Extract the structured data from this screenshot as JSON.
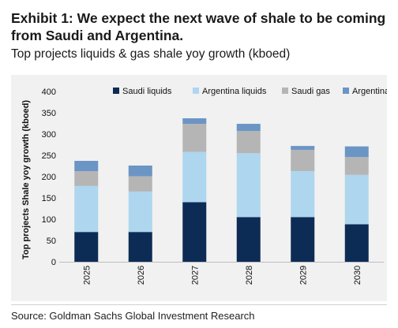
{
  "header": {
    "title_line1": "Exhibit 1: We expect the next wave of shale to be coming",
    "title_line2": "from Saudi and Argentina.",
    "subtitle": "Top projects liquids & gas shale yoy growth (kboed)"
  },
  "source": "Source: Goldman Sachs Global Investment Research",
  "colors": {
    "Saudi liquids": "#0d2c55",
    "Argentina liquids": "#aed6ef",
    "Saudi gas": "#b5b5b5",
    "Argentina gas": "#6b95c4"
  },
  "chart_data": {
    "type": "bar",
    "stacked": true,
    "categories": [
      "2025",
      "2026",
      "2027",
      "2028",
      "2029",
      "2030"
    ],
    "series": [
      {
        "name": "Saudi liquids",
        "values": [
          70,
          70,
          140,
          105,
          105,
          88
        ]
      },
      {
        "name": "Argentina liquids",
        "values": [
          108,
          95,
          118,
          150,
          108,
          116
        ]
      },
      {
        "name": "Saudi gas",
        "values": [
          35,
          36,
          66,
          52,
          50,
          42
        ]
      },
      {
        "name": "Argentina gas",
        "values": [
          24,
          25,
          13,
          17,
          9,
          25
        ]
      }
    ],
    "ylabel": "Top projects Shale yoy growth (kboed)",
    "xlabel": "",
    "ylim": [
      0,
      400
    ],
    "yticks": [
      0,
      50,
      100,
      150,
      200,
      250,
      300,
      350,
      400
    ],
    "grid": false,
    "legend_position": "top"
  }
}
